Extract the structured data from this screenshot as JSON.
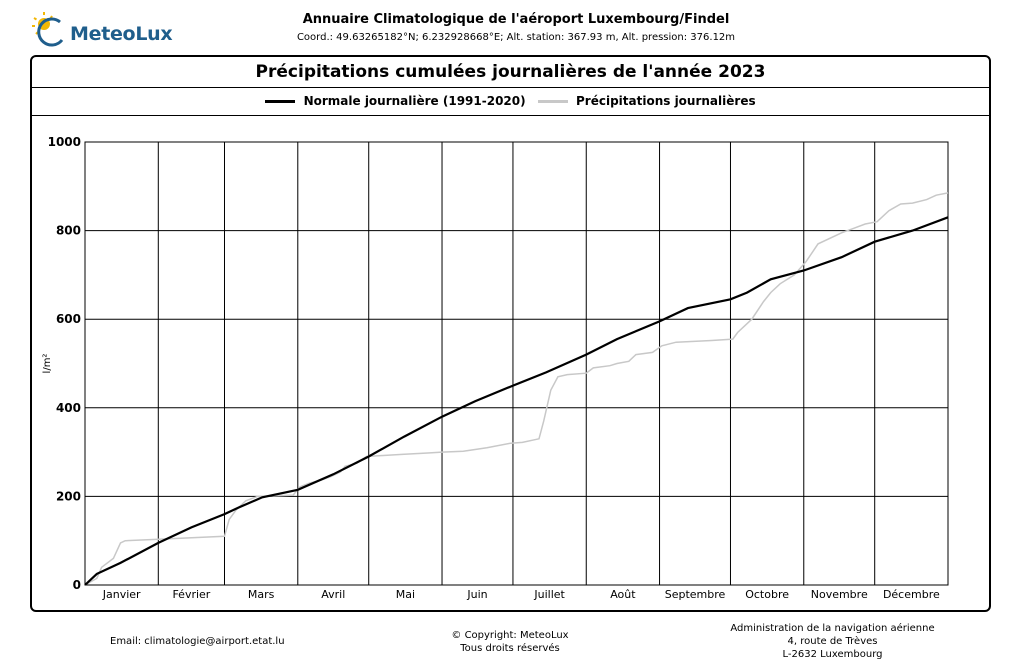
{
  "header": {
    "logo_text": "MeteoLux",
    "title": "Annuaire Climatologique de l'aéroport Luxembourg/Findel",
    "coordinates": "Coord.: 49.63265182°N; 6.232928668°E; Alt. station: 367.93 m, Alt. pression: 376.12m"
  },
  "icons": {
    "logo": "sun-icon"
  },
  "colors": {
    "normal": "#000000",
    "precip": "#c8c8c8",
    "grid": "#000000"
  },
  "chart_data": {
    "type": "line",
    "title": "Précipitations cumulées journalières de l'année 2023",
    "ylabel": "l/m²",
    "xlabel": "",
    "ylim": [
      0,
      1000
    ],
    "xlim": [
      0,
      365
    ],
    "y_ticks": [
      0,
      200,
      400,
      600,
      800,
      1000
    ],
    "categories": [
      "Janvier",
      "Février",
      "Mars",
      "Avril",
      "Mai",
      "Juin",
      "Juillet",
      "Août",
      "Septembre",
      "Octobre",
      "Novembre",
      "Décembre"
    ],
    "month_starts": [
      0,
      31,
      59,
      90,
      120,
      151,
      181,
      212,
      243,
      273,
      304,
      334,
      365
    ],
    "grid": true,
    "legend_position": "top-center",
    "series": [
      {
        "name": "Normale journalière (1991-2020)",
        "x": [
          0,
          5,
          15,
          31,
          45,
          59,
          65,
          75,
          90,
          105,
          120,
          135,
          151,
          165,
          181,
          195,
          212,
          225,
          243,
          255,
          273,
          280,
          290,
          304,
          320,
          334,
          350,
          365
        ],
        "y": [
          0,
          25,
          50,
          95,
          130,
          160,
          175,
          198,
          215,
          250,
          290,
          335,
          380,
          415,
          450,
          480,
          520,
          555,
          595,
          625,
          645,
          660,
          690,
          710,
          740,
          775,
          800,
          830
        ]
      },
      {
        "name": "Précipitations journalières",
        "x": [
          0,
          5,
          7,
          12,
          15,
          17,
          30,
          59,
          61,
          64,
          68,
          73,
          88,
          91,
          95,
          100,
          104,
          108,
          110,
          115,
          119,
          125,
          135,
          145,
          151,
          160,
          170,
          180,
          185,
          192,
          194,
          197,
          200,
          204,
          212,
          215,
          222,
          225,
          230,
          233,
          240,
          244,
          250,
          265,
          274,
          276,
          282,
          287,
          290,
          294,
          300,
          305,
          310,
          320,
          325,
          330,
          335,
          340,
          345,
          350,
          356,
          360,
          365
        ],
        "y": [
          0,
          15,
          40,
          60,
          95,
          100,
          103,
          110,
          148,
          170,
          190,
          200,
          203,
          222,
          230,
          237,
          245,
          255,
          268,
          275,
          290,
          292,
          295,
          298,
          300,
          302,
          310,
          320,
          322,
          330,
          370,
          440,
          470,
          475,
          478,
          490,
          495,
          500,
          505,
          520,
          525,
          540,
          548,
          552,
          555,
          570,
          600,
          640,
          660,
          680,
          700,
          730,
          770,
          795,
          805,
          815,
          820,
          845,
          860,
          862,
          870,
          880,
          885
        ]
      }
    ]
  },
  "footer": {
    "email": "Email: climatologie@airport.etat.lu",
    "copyright_line1": "© Copyright: MeteoLux",
    "copyright_line2": "Tous droits réservés",
    "address_line1": "Administration de la navigation aérienne",
    "address_line2": "4, route de Trèves",
    "address_line3": "L-2632 Luxembourg"
  }
}
